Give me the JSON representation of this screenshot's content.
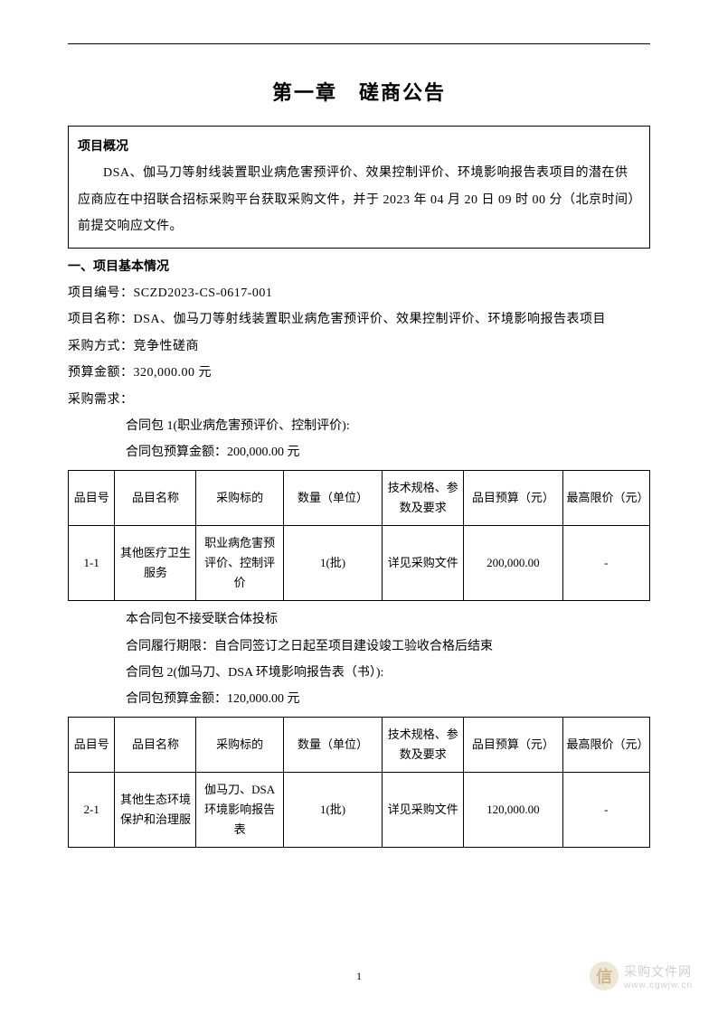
{
  "chapterTitle": "第一章　磋商公告",
  "overview": {
    "header": "项目概况",
    "text": "DSA、伽马刀等射线装置职业病危害预评价、效果控制评价、环境影响报告表项目的潜在供应商应在中招联合招标采购平台获取采购文件，并于 2023 年 04 月 20 日 09 时 00 分（北京时间）前提交响应文件。"
  },
  "section1": {
    "header": "一、项目基本情况",
    "projectNumberLabel": "项目编号：",
    "projectNumber": "SCZD2023-CS-0617-001",
    "projectNameLabel": "项目名称：",
    "projectName": "DSA、伽马刀等射线装置职业病危害预评价、效果控制评价、环境影响报告表项目",
    "methodLabel": "采购方式：",
    "method": "竞争性磋商",
    "budgetLabel": "预算金额：",
    "budget": "320,000.00 元",
    "demandLabel": "采购需求："
  },
  "package1": {
    "title": "合同包 1(职业病危害预评价、控制评价):",
    "budgetLine": "合同包预算金额：200,000.00 元",
    "note1": "本合同包不接受联合体投标",
    "note2": "合同履行期限：自合同签订之日起至项目建设竣工验收合格后结束"
  },
  "package2": {
    "title": "合同包 2(伽马刀、DSA 环境影响报告表（书）):",
    "budgetLine": "合同包预算金额：120,000.00 元"
  },
  "tableHeaders": {
    "col1": "品目号",
    "col2": "品目名称",
    "col3": "采购标的",
    "col4": "数量（单位）",
    "col5": "技术规格、参数及要求",
    "col6": "品目预算（元）",
    "col7": "最高限价（元）"
  },
  "table1Row": {
    "c1": "1-1",
    "c2": "其他医疗卫生服务",
    "c3": "职业病危害预评价、控制评价",
    "c4": "1(批)",
    "c5": "详见采购文件",
    "c6": "200,000.00",
    "c7": "-"
  },
  "table2Row": {
    "c1": "2-1",
    "c2": "其他生态环境保护和治理服",
    "c3": "伽马刀、DSA 环境影响报告表",
    "c4": "1(批)",
    "c5": "详见采购文件",
    "c6": "120,000.00",
    "c7": "-"
  },
  "pageNumber": "1",
  "watermark": {
    "iconText": "信",
    "text": "采购文件网",
    "sub": "www.cgwjw.cn"
  }
}
